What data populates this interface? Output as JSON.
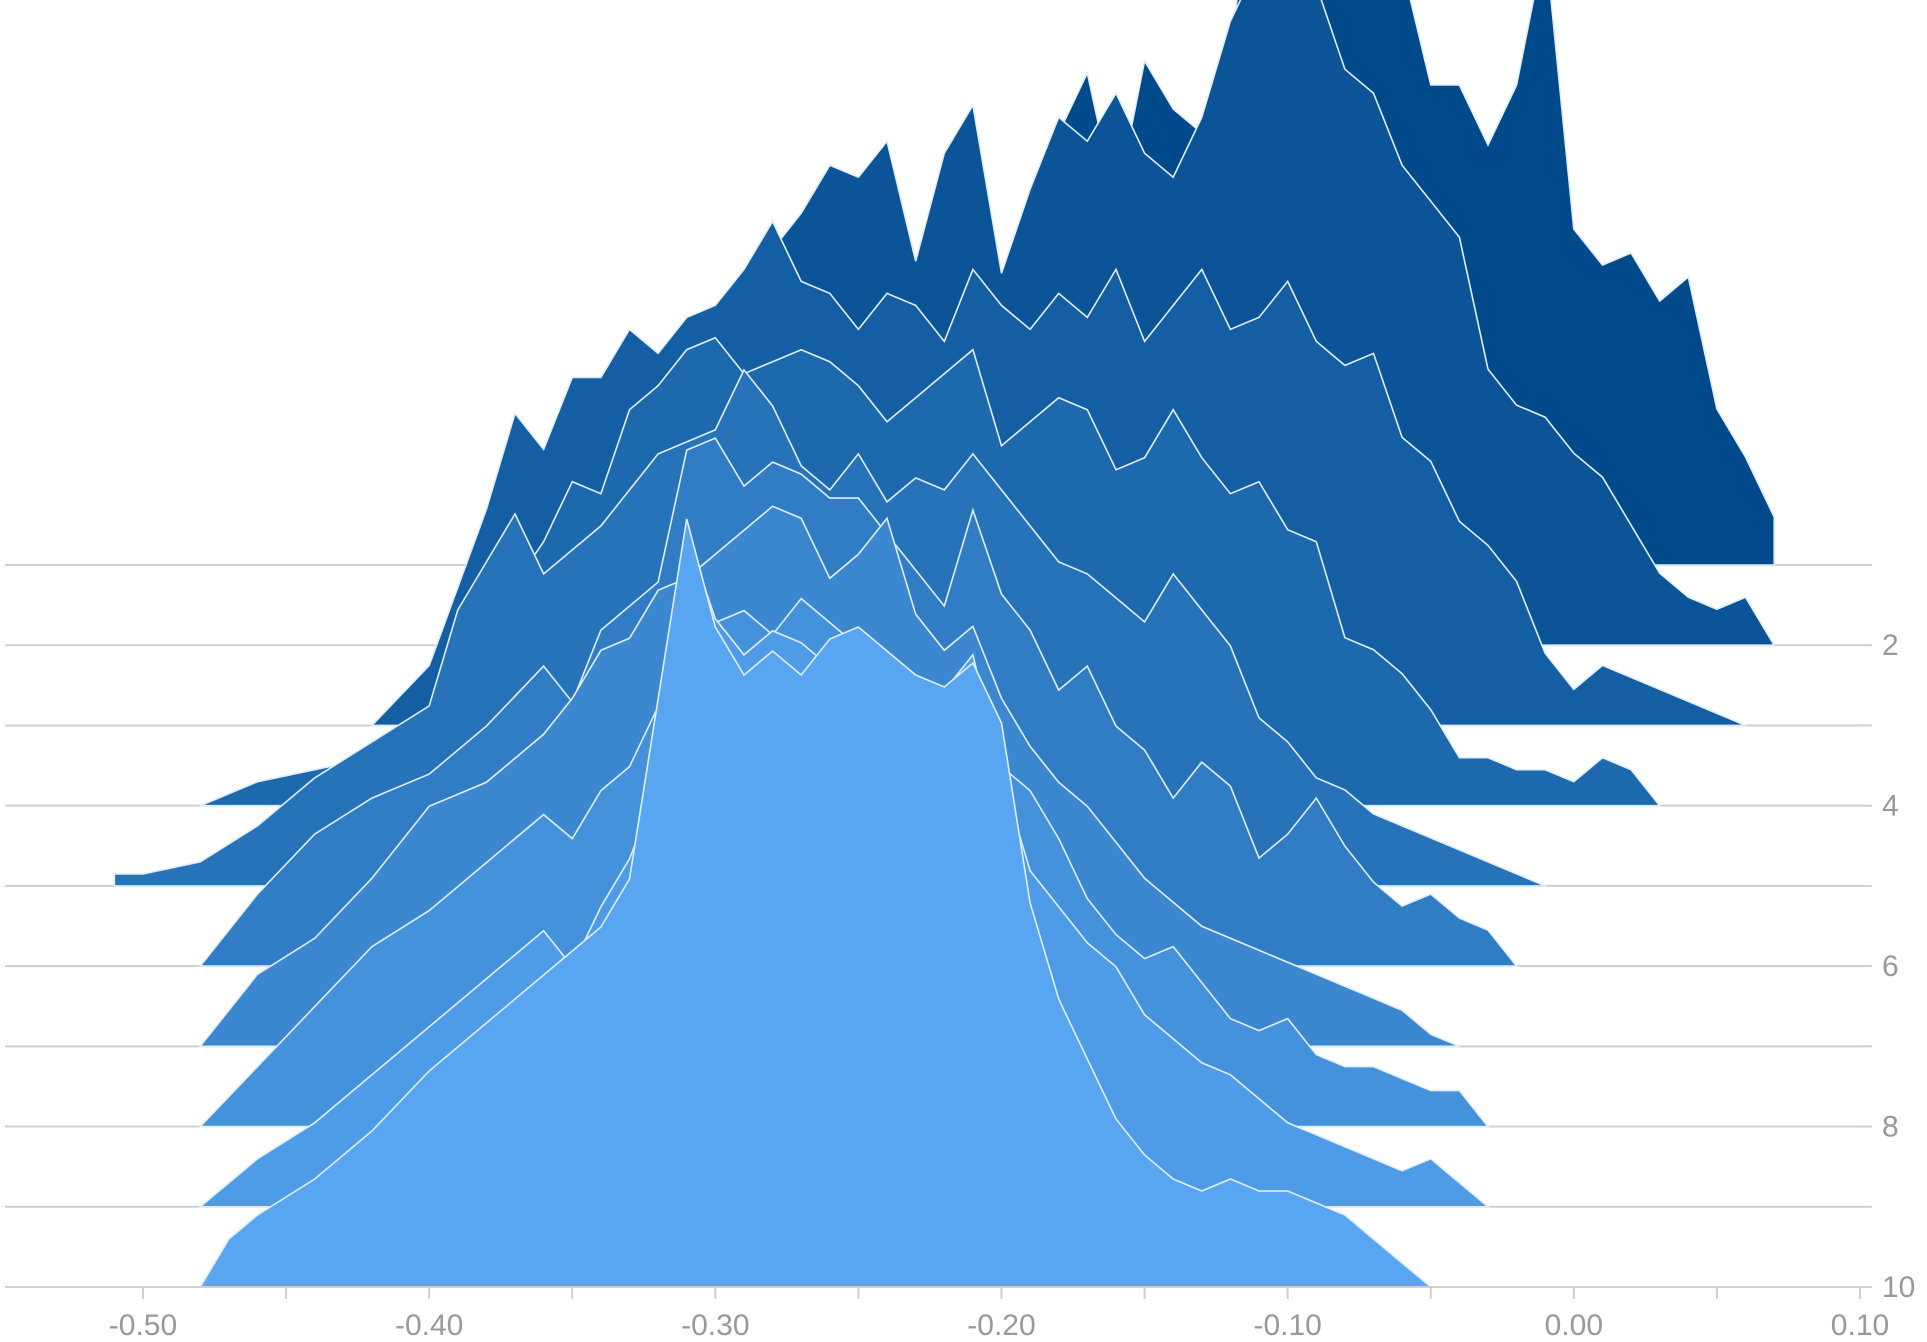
{
  "chart_data": {
    "type": "area",
    "subtype": "ridgeline",
    "title": "",
    "xlabel": "",
    "ylabel": "",
    "xlim": [
      -0.5,
      0.1
    ],
    "x_ticks": [
      -0.5,
      -0.4,
      -0.3,
      -0.2,
      -0.1,
      0.0,
      0.1
    ],
    "x_tick_labels": [
      "-0.50",
      "-0.40",
      "-0.30",
      "-0.20",
      "-0.10",
      "0.00",
      "0.10"
    ],
    "y_ticks": [
      1,
      2,
      3,
      4,
      5,
      6,
      7,
      8,
      9,
      10
    ],
    "y_tick_labels": [
      "",
      "2",
      "",
      "4",
      "",
      "6",
      "",
      "8",
      "",
      "10"
    ],
    "y_axis_position": "right",
    "grid": false,
    "legend": "none",
    "colors": {
      "back_series": "#004a8c",
      "front_series": "#58a6f2",
      "series_outline": "#dfeeff",
      "baseline": "#cfcfcf",
      "axis_text": "#999999"
    },
    "series": [
      {
        "level": 1,
        "x": [
          -0.19,
          -0.18,
          -0.17,
          -0.16,
          -0.15,
          -0.14,
          -0.13,
          -0.12,
          -0.11,
          -0.1,
          -0.09,
          -0.08,
          -0.07,
          -0.06,
          -0.05,
          -0.04,
          -0.03,
          -0.02,
          -0.01,
          0.0,
          0.01,
          0.02,
          0.03,
          0.04,
          0.05,
          0.06,
          0.07
        ],
        "y": [
          0,
          3.6,
          4.1,
          3.0,
          4.2,
          3.8,
          3.6,
          4.3,
          6.1,
          6.4,
          6.2,
          6.2,
          6.2,
          5.0,
          4.0,
          4.0,
          3.5,
          4.0,
          5.2,
          2.8,
          2.5,
          2.6,
          2.2,
          2.4,
          1.3,
          0.9,
          0.4
        ]
      },
      {
        "level": 2,
        "x": [
          -0.31,
          -0.3,
          -0.29,
          -0.28,
          -0.27,
          -0.26,
          -0.25,
          -0.24,
          -0.23,
          -0.22,
          -0.21,
          -0.2,
          -0.19,
          -0.18,
          -0.17,
          -0.16,
          -0.15,
          -0.14,
          -0.13,
          -0.12,
          -0.11,
          -0.1,
          -0.09,
          -0.08,
          -0.07,
          -0.06,
          -0.05,
          -0.04,
          -0.03,
          -0.02,
          -0.01,
          0.0,
          0.01,
          0.02,
          0.03,
          0.04,
          0.05,
          0.06,
          0.07
        ],
        "y": [
          0,
          1.9,
          2.8,
          3.3,
          3.6,
          4.0,
          3.9,
          4.2,
          3.2,
          4.1,
          4.5,
          3.1,
          3.8,
          4.4,
          4.2,
          4.6,
          4.1,
          3.9,
          4.4,
          5.2,
          5.7,
          6.2,
          5.5,
          4.8,
          4.6,
          4.0,
          3.7,
          3.4,
          2.3,
          2.0,
          1.9,
          1.6,
          1.4,
          1.0,
          0.6,
          0.4,
          0.3,
          0.4,
          0
        ]
      },
      {
        "level": 3,
        "x": [
          -0.42,
          -0.4,
          -0.38,
          -0.37,
          -0.36,
          -0.35,
          -0.34,
          -0.33,
          -0.32,
          -0.31,
          -0.3,
          -0.29,
          -0.28,
          -0.27,
          -0.26,
          -0.25,
          -0.24,
          -0.23,
          -0.22,
          -0.21,
          -0.2,
          -0.19,
          -0.18,
          -0.17,
          -0.16,
          -0.15,
          -0.14,
          -0.13,
          -0.12,
          -0.11,
          -0.1,
          -0.09,
          -0.08,
          -0.07,
          -0.06,
          -0.05,
          -0.04,
          -0.03,
          -0.02,
          -0.01,
          0.0,
          0.01,
          0.02,
          0.03,
          0.04,
          0.05,
          0.06
        ],
        "y": [
          0,
          0.5,
          1.8,
          2.6,
          2.3,
          2.9,
          2.9,
          3.3,
          3.1,
          3.4,
          3.5,
          3.8,
          4.2,
          3.7,
          3.6,
          3.3,
          3.6,
          3.5,
          3.2,
          3.8,
          3.5,
          3.3,
          3.6,
          3.4,
          3.8,
          3.2,
          3.5,
          3.8,
          3.3,
          3.4,
          3.7,
          3.2,
          3.0,
          3.1,
          2.4,
          2.2,
          1.7,
          1.5,
          1.2,
          0.6,
          0.3,
          0.5,
          0.4,
          0.3,
          0.2,
          0.1,
          0
        ]
      },
      {
        "level": 4,
        "x": [
          -0.48,
          -0.46,
          -0.44,
          -0.42,
          -0.4,
          -0.38,
          -0.36,
          -0.35,
          -0.34,
          -0.33,
          -0.32,
          -0.31,
          -0.3,
          -0.29,
          -0.28,
          -0.27,
          -0.26,
          -0.25,
          -0.24,
          -0.23,
          -0.22,
          -0.21,
          -0.2,
          -0.19,
          -0.18,
          -0.17,
          -0.16,
          -0.15,
          -0.14,
          -0.13,
          -0.12,
          -0.11,
          -0.1,
          -0.09,
          -0.08,
          -0.07,
          -0.06,
          -0.05,
          -0.04,
          -0.03,
          -0.02,
          -0.01,
          0.0,
          0.01,
          0.02,
          0.03
        ],
        "y": [
          0,
          0.2,
          0.3,
          0.4,
          0.5,
          1.5,
          2.2,
          2.7,
          2.6,
          3.3,
          3.5,
          3.8,
          3.9,
          3.6,
          3.7,
          3.8,
          3.7,
          3.5,
          3.2,
          3.4,
          3.6,
          3.8,
          3.0,
          3.2,
          3.4,
          3.3,
          2.8,
          2.9,
          3.3,
          2.9,
          2.6,
          2.7,
          2.3,
          2.2,
          1.4,
          1.3,
          1.1,
          0.8,
          0.4,
          0.4,
          0.3,
          0.3,
          0.2,
          0.4,
          0.3,
          0
        ]
      },
      {
        "level": 5,
        "x": [
          -0.51,
          -0.5,
          -0.48,
          -0.46,
          -0.44,
          -0.42,
          -0.4,
          -0.39,
          -0.38,
          -0.37,
          -0.36,
          -0.35,
          -0.34,
          -0.33,
          -0.32,
          -0.31,
          -0.3,
          -0.29,
          -0.28,
          -0.27,
          -0.26,
          -0.25,
          -0.24,
          -0.23,
          -0.22,
          -0.21,
          -0.2,
          -0.19,
          -0.18,
          -0.17,
          -0.16,
          -0.15,
          -0.14,
          -0.13,
          -0.12,
          -0.11,
          -0.1,
          -0.09,
          -0.08,
          -0.07,
          -0.06,
          -0.05,
          -0.04,
          -0.03,
          -0.02,
          -0.01
        ],
        "y": [
          0.1,
          0.1,
          0.2,
          0.5,
          0.9,
          1.2,
          1.5,
          2.3,
          2.7,
          3.1,
          2.6,
          2.8,
          3.0,
          3.3,
          3.6,
          3.7,
          3.8,
          4.3,
          4.0,
          3.5,
          3.3,
          3.6,
          3.2,
          3.4,
          3.3,
          3.6,
          3.3,
          3.0,
          2.7,
          2.6,
          2.4,
          2.2,
          2.6,
          2.3,
          2.0,
          1.4,
          1.2,
          0.9,
          0.8,
          0.6,
          0.5,
          0.4,
          0.3,
          0.2,
          0.1,
          0
        ]
      },
      {
        "level": 6,
        "x": [
          -0.48,
          -0.46,
          -0.44,
          -0.42,
          -0.4,
          -0.38,
          -0.36,
          -0.35,
          -0.34,
          -0.33,
          -0.32,
          -0.31,
          -0.3,
          -0.29,
          -0.28,
          -0.27,
          -0.26,
          -0.25,
          -0.24,
          -0.23,
          -0.22,
          -0.21,
          -0.2,
          -0.19,
          -0.18,
          -0.17,
          -0.16,
          -0.15,
          -0.14,
          -0.13,
          -0.12,
          -0.11,
          -0.1,
          -0.09,
          -0.08,
          -0.07,
          -0.06,
          -0.05,
          -0.04,
          -0.03,
          -0.02
        ],
        "y": [
          0,
          0.6,
          1.1,
          1.4,
          1.6,
          2.0,
          2.5,
          2.2,
          2.8,
          3.0,
          3.2,
          4.3,
          4.4,
          4.0,
          4.2,
          4.1,
          3.9,
          3.9,
          3.6,
          3.3,
          3.0,
          3.8,
          3.1,
          2.8,
          2.3,
          2.5,
          2.0,
          1.8,
          1.4,
          1.7,
          1.5,
          0.9,
          1.1,
          1.4,
          1.0,
          0.7,
          0.5,
          0.6,
          0.4,
          0.3,
          0
        ]
      },
      {
        "level": 7,
        "x": [
          -0.48,
          -0.46,
          -0.44,
          -0.42,
          -0.4,
          -0.38,
          -0.36,
          -0.35,
          -0.34,
          -0.33,
          -0.32,
          -0.31,
          -0.3,
          -0.29,
          -0.28,
          -0.27,
          -0.26,
          -0.25,
          -0.24,
          -0.23,
          -0.22,
          -0.21,
          -0.2,
          -0.19,
          -0.18,
          -0.17,
          -0.16,
          -0.15,
          -0.14,
          -0.13,
          -0.12,
          -0.11,
          -0.1,
          -0.09,
          -0.08,
          -0.07,
          -0.06,
          -0.05,
          -0.04
        ],
        "y": [
          0,
          0.6,
          0.9,
          1.4,
          2.0,
          2.2,
          2.6,
          2.9,
          3.3,
          3.4,
          3.8,
          3.9,
          4.1,
          4.3,
          4.5,
          4.4,
          3.9,
          4.1,
          4.4,
          3.6,
          3.3,
          3.5,
          2.9,
          2.5,
          2.2,
          2.0,
          1.7,
          1.4,
          1.2,
          1.0,
          0.9,
          0.8,
          0.7,
          0.6,
          0.5,
          0.4,
          0.3,
          0.1,
          0
        ]
      },
      {
        "level": 8,
        "x": [
          -0.48,
          -0.46,
          -0.44,
          -0.42,
          -0.4,
          -0.38,
          -0.36,
          -0.35,
          -0.34,
          -0.33,
          -0.32,
          -0.31,
          -0.3,
          -0.29,
          -0.28,
          -0.27,
          -0.26,
          -0.25,
          -0.24,
          -0.23,
          -0.22,
          -0.21,
          -0.2,
          -0.19,
          -0.18,
          -0.17,
          -0.16,
          -0.15,
          -0.14,
          -0.13,
          -0.12,
          -0.11,
          -0.1,
          -0.09,
          -0.08,
          -0.07,
          -0.06,
          -0.05,
          -0.04,
          -0.03
        ],
        "y": [
          0,
          0.5,
          1.0,
          1.5,
          1.8,
          2.2,
          2.6,
          2.4,
          2.8,
          3.0,
          3.5,
          4.0,
          4.2,
          4.3,
          4.1,
          4.4,
          4.2,
          4.0,
          3.8,
          3.5,
          3.6,
          3.2,
          3.0,
          2.8,
          2.4,
          1.9,
          1.6,
          1.4,
          1.5,
          1.2,
          0.9,
          0.8,
          0.9,
          0.6,
          0.5,
          0.5,
          0.4,
          0.3,
          0.3,
          0
        ]
      },
      {
        "level": 9,
        "x": [
          -0.48,
          -0.46,
          -0.44,
          -0.42,
          -0.4,
          -0.38,
          -0.36,
          -0.35,
          -0.34,
          -0.33,
          -0.32,
          -0.31,
          -0.3,
          -0.29,
          -0.28,
          -0.27,
          -0.26,
          -0.25,
          -0.24,
          -0.23,
          -0.22,
          -0.21,
          -0.2,
          -0.19,
          -0.18,
          -0.17,
          -0.16,
          -0.15,
          -0.14,
          -0.13,
          -0.12,
          -0.11,
          -0.1,
          -0.09,
          -0.08,
          -0.07,
          -0.06,
          -0.05,
          -0.04,
          -0.03
        ],
        "y": [
          0,
          0.4,
          0.7,
          1.1,
          1.5,
          1.9,
          2.3,
          2.0,
          2.5,
          2.9,
          3.5,
          5.6,
          4.9,
          4.6,
          4.8,
          4.7,
          4.5,
          4.8,
          4.6,
          4.3,
          4.3,
          4.6,
          3.6,
          2.8,
          2.5,
          2.2,
          2.0,
          1.6,
          1.4,
          1.2,
          1.1,
          0.9,
          0.7,
          0.6,
          0.5,
          0.4,
          0.3,
          0.4,
          0.2,
          0
        ]
      },
      {
        "level": 10,
        "x": [
          -0.48,
          -0.47,
          -0.46,
          -0.44,
          -0.42,
          -0.4,
          -0.38,
          -0.36,
          -0.34,
          -0.33,
          -0.32,
          -0.31,
          -0.3,
          -0.29,
          -0.28,
          -0.27,
          -0.26,
          -0.25,
          -0.24,
          -0.23,
          -0.22,
          -0.21,
          -0.2,
          -0.19,
          -0.18,
          -0.17,
          -0.16,
          -0.15,
          -0.14,
          -0.13,
          -0.12,
          -0.11,
          -0.1,
          -0.09,
          -0.08,
          -0.07,
          -0.06,
          -0.05
        ],
        "y": [
          0,
          0.4,
          0.6,
          0.9,
          1.3,
          1.8,
          2.2,
          2.6,
          3.0,
          3.4,
          4.9,
          6.4,
          5.5,
          5.1,
          5.3,
          5.1,
          5.4,
          5.5,
          5.3,
          5.1,
          5.0,
          5.2,
          4.7,
          3.2,
          2.4,
          1.9,
          1.4,
          1.1,
          0.9,
          0.8,
          0.9,
          0.8,
          0.8,
          0.7,
          0.6,
          0.4,
          0.2,
          0
        ]
      }
    ]
  }
}
